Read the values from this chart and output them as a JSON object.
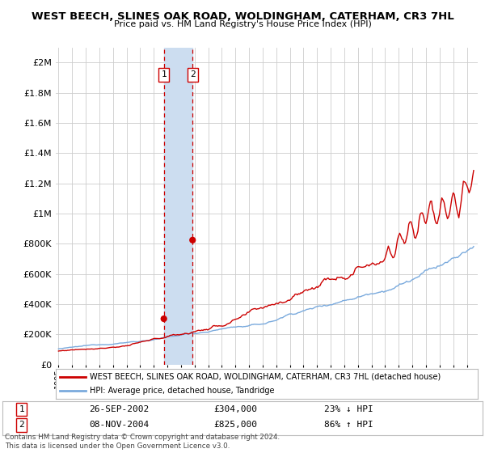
{
  "title": "WEST BEECH, SLINES OAK ROAD, WOLDINGHAM, CATERHAM, CR3 7HL",
  "subtitle": "Price paid vs. HM Land Registry's House Price Index (HPI)",
  "legend_line1": "WEST BEECH, SLINES OAK ROAD, WOLDINGHAM, CATERHAM, CR3 7HL (detached house)",
  "legend_line2": "HPI: Average price, detached house, Tandridge",
  "transaction1_date": "26-SEP-2002",
  "transaction1_price": "£304,000",
  "transaction1_hpi": "23% ↓ HPI",
  "transaction2_date": "08-NOV-2004",
  "transaction2_price": "£825,000",
  "transaction2_hpi": "86% ↑ HPI",
  "footnote": "Contains HM Land Registry data © Crown copyright and database right 2024.\nThis data is licensed under the Open Government Licence v3.0.",
  "hpi_color": "#7aaadd",
  "price_color": "#cc0000",
  "shade_color": "#ccddf0",
  "transaction1_x": 2002.74,
  "transaction2_x": 2004.85,
  "transaction1_y": 304000,
  "transaction2_y": 825000,
  "ylim": [
    0,
    2100000
  ],
  "xlim_start": 1994.8,
  "xlim_end": 2025.8,
  "background_color": "#ffffff"
}
